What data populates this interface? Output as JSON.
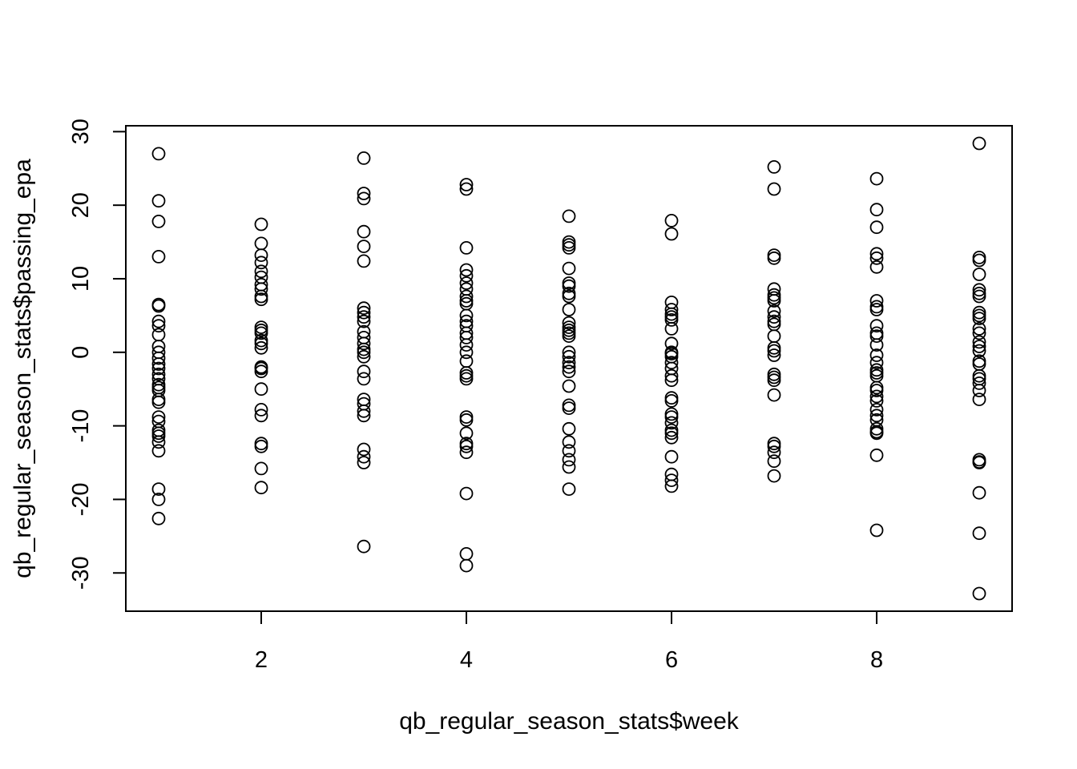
{
  "chart_data": {
    "type": "scatter",
    "xlabel": "qb_regular_season_stats$week",
    "ylabel": "qb_regular_season_stats$passing_epa",
    "xlim": [
      0.68,
      9.32
    ],
    "ylim": [
      -35.2,
      30.8
    ],
    "xticks": [
      2,
      4,
      6,
      8
    ],
    "yticks": [
      -30,
      -20,
      -10,
      0,
      10,
      20,
      30
    ],
    "grid": false,
    "marker": "open-circle",
    "color": "#000000",
    "series": [
      {
        "points": [
          [
            1,
            27.0
          ],
          [
            1,
            20.6
          ],
          [
            1,
            17.8
          ],
          [
            1,
            13.0
          ],
          [
            1,
            6.5
          ],
          [
            1,
            6.3
          ],
          [
            1,
            4.2
          ],
          [
            1,
            3.6
          ],
          [
            1,
            2.4
          ],
          [
            1,
            0.8
          ],
          [
            1,
            0.0
          ],
          [
            1,
            -0.8
          ],
          [
            1,
            -1.6
          ],
          [
            1,
            -2.2
          ],
          [
            1,
            -3.0
          ],
          [
            1,
            -3.6
          ],
          [
            1,
            -4.4
          ],
          [
            1,
            -4.8
          ],
          [
            1,
            -5.2
          ],
          [
            1,
            -6.4
          ],
          [
            1,
            -6.8
          ],
          [
            1,
            -8.8
          ],
          [
            1,
            -9.4
          ],
          [
            1,
            -10.6
          ],
          [
            1,
            -11.0
          ],
          [
            1,
            -11.4
          ],
          [
            1,
            -12.2
          ],
          [
            1,
            -13.4
          ],
          [
            1,
            -18.6
          ],
          [
            1,
            -20.0
          ],
          [
            1,
            -22.6
          ],
          [
            2,
            17.4
          ],
          [
            2,
            14.8
          ],
          [
            2,
            13.2
          ],
          [
            2,
            12.2
          ],
          [
            2,
            11.0
          ],
          [
            2,
            10.2
          ],
          [
            2,
            9.2
          ],
          [
            2,
            8.6
          ],
          [
            2,
            7.6
          ],
          [
            2,
            7.2
          ],
          [
            2,
            3.4
          ],
          [
            2,
            3.0
          ],
          [
            2,
            2.6
          ],
          [
            2,
            1.6
          ],
          [
            2,
            1.2
          ],
          [
            2,
            0.6
          ],
          [
            2,
            -2.0
          ],
          [
            2,
            -2.2
          ],
          [
            2,
            -2.6
          ],
          [
            2,
            -5.0
          ],
          [
            2,
            -7.8
          ],
          [
            2,
            -8.6
          ],
          [
            2,
            -12.4
          ],
          [
            2,
            -12.8
          ],
          [
            2,
            -15.8
          ],
          [
            2,
            -18.4
          ],
          [
            3,
            26.4
          ],
          [
            3,
            21.6
          ],
          [
            3,
            20.9
          ],
          [
            3,
            16.4
          ],
          [
            3,
            14.4
          ],
          [
            3,
            12.4
          ],
          [
            3,
            6.0
          ],
          [
            3,
            5.4
          ],
          [
            3,
            4.8
          ],
          [
            3,
            4.2
          ],
          [
            3,
            2.8
          ],
          [
            3,
            2.0
          ],
          [
            3,
            1.2
          ],
          [
            3,
            0.4
          ],
          [
            3,
            0.0
          ],
          [
            3,
            -0.6
          ],
          [
            3,
            -2.6
          ],
          [
            3,
            -3.6
          ],
          [
            3,
            -6.4
          ],
          [
            3,
            -7.0
          ],
          [
            3,
            -8.0
          ],
          [
            3,
            -8.6
          ],
          [
            3,
            -13.2
          ],
          [
            3,
            -14.2
          ],
          [
            3,
            -15.0
          ],
          [
            3,
            -26.4
          ],
          [
            4,
            22.8
          ],
          [
            4,
            22.2
          ],
          [
            4,
            14.2
          ],
          [
            4,
            11.2
          ],
          [
            4,
            10.4
          ],
          [
            4,
            9.4
          ],
          [
            4,
            8.6
          ],
          [
            4,
            7.6
          ],
          [
            4,
            7.0
          ],
          [
            4,
            6.6
          ],
          [
            4,
            5.0
          ],
          [
            4,
            4.2
          ],
          [
            4,
            3.6
          ],
          [
            4,
            2.6
          ],
          [
            4,
            2.0
          ],
          [
            4,
            1.0
          ],
          [
            4,
            0.0
          ],
          [
            4,
            -1.2
          ],
          [
            4,
            -2.8
          ],
          [
            4,
            -3.2
          ],
          [
            4,
            -3.6
          ],
          [
            4,
            -8.8
          ],
          [
            4,
            -9.2
          ],
          [
            4,
            -11.0
          ],
          [
            4,
            -12.4
          ],
          [
            4,
            -12.8
          ],
          [
            4,
            -13.6
          ],
          [
            4,
            -19.2
          ],
          [
            4,
            -27.4
          ],
          [
            4,
            -29.0
          ],
          [
            5,
            18.5
          ],
          [
            5,
            15.0
          ],
          [
            5,
            14.6
          ],
          [
            5,
            14.2
          ],
          [
            5,
            11.4
          ],
          [
            5,
            9.4
          ],
          [
            5,
            9.0
          ],
          [
            5,
            8.0
          ],
          [
            5,
            7.6
          ],
          [
            5,
            5.8
          ],
          [
            5,
            4.0
          ],
          [
            5,
            3.4
          ],
          [
            5,
            3.0
          ],
          [
            5,
            2.6
          ],
          [
            5,
            2.2
          ],
          [
            5,
            0.0
          ],
          [
            5,
            -0.6
          ],
          [
            5,
            -1.4
          ],
          [
            5,
            -2.0
          ],
          [
            5,
            -2.6
          ],
          [
            5,
            -4.6
          ],
          [
            5,
            -7.2
          ],
          [
            5,
            -7.6
          ],
          [
            5,
            -10.4
          ],
          [
            5,
            -12.2
          ],
          [
            5,
            -13.4
          ],
          [
            5,
            -14.6
          ],
          [
            5,
            -15.6
          ],
          [
            5,
            -18.6
          ],
          [
            6,
            17.9
          ],
          [
            6,
            16.1
          ],
          [
            6,
            6.8
          ],
          [
            6,
            5.8
          ],
          [
            6,
            5.2
          ],
          [
            6,
            4.8
          ],
          [
            6,
            4.4
          ],
          [
            6,
            3.2
          ],
          [
            6,
            1.2
          ],
          [
            6,
            0.0
          ],
          [
            6,
            -0.2
          ],
          [
            6,
            -0.6
          ],
          [
            6,
            -1.4
          ],
          [
            6,
            -2.2
          ],
          [
            6,
            -3.2
          ],
          [
            6,
            -3.8
          ],
          [
            6,
            -6.2
          ],
          [
            6,
            -6.6
          ],
          [
            6,
            -8.4
          ],
          [
            6,
            -8.8
          ],
          [
            6,
            -9.6
          ],
          [
            6,
            -10.6
          ],
          [
            6,
            -11.0
          ],
          [
            6,
            -11.6
          ],
          [
            6,
            -14.2
          ],
          [
            6,
            -16.6
          ],
          [
            6,
            -17.4
          ],
          [
            6,
            -18.2
          ],
          [
            7,
            25.2
          ],
          [
            7,
            22.2
          ],
          [
            7,
            13.2
          ],
          [
            7,
            12.8
          ],
          [
            7,
            8.6
          ],
          [
            7,
            7.8
          ],
          [
            7,
            7.4
          ],
          [
            7,
            7.0
          ],
          [
            7,
            5.6
          ],
          [
            7,
            4.8
          ],
          [
            7,
            4.2
          ],
          [
            7,
            3.8
          ],
          [
            7,
            2.2
          ],
          [
            7,
            0.6
          ],
          [
            7,
            0.2
          ],
          [
            7,
            -0.4
          ],
          [
            7,
            -3.0
          ],
          [
            7,
            -3.4
          ],
          [
            7,
            -3.8
          ],
          [
            7,
            -5.8
          ],
          [
            7,
            -12.4
          ],
          [
            7,
            -12.8
          ],
          [
            7,
            -13.6
          ],
          [
            7,
            -14.8
          ],
          [
            7,
            -16.8
          ],
          [
            8,
            23.6
          ],
          [
            8,
            19.4
          ],
          [
            8,
            17.0
          ],
          [
            8,
            13.4
          ],
          [
            8,
            12.8
          ],
          [
            8,
            11.6
          ],
          [
            8,
            7.0
          ],
          [
            8,
            6.2
          ],
          [
            8,
            5.8
          ],
          [
            8,
            3.6
          ],
          [
            8,
            2.6
          ],
          [
            8,
            2.2
          ],
          [
            8,
            1.0
          ],
          [
            8,
            -0.4
          ],
          [
            8,
            -1.4
          ],
          [
            8,
            -2.4
          ],
          [
            8,
            -2.8
          ],
          [
            8,
            -3.2
          ],
          [
            8,
            -4.8
          ],
          [
            8,
            -5.2
          ],
          [
            8,
            -6.0
          ],
          [
            8,
            -6.6
          ],
          [
            8,
            -7.8
          ],
          [
            8,
            -8.6
          ],
          [
            8,
            -9.2
          ],
          [
            8,
            -10.4
          ],
          [
            8,
            -10.8
          ],
          [
            8,
            -11.0
          ],
          [
            8,
            -14.0
          ],
          [
            8,
            -24.2
          ],
          [
            9,
            28.4
          ],
          [
            9,
            12.9
          ],
          [
            9,
            12.5
          ],
          [
            9,
            10.6
          ],
          [
            9,
            8.5
          ],
          [
            9,
            8.0
          ],
          [
            9,
            7.6
          ],
          [
            9,
            5.4
          ],
          [
            9,
            5.0
          ],
          [
            9,
            4.6
          ],
          [
            9,
            3.2
          ],
          [
            9,
            2.6
          ],
          [
            9,
            1.4
          ],
          [
            9,
            0.8
          ],
          [
            9,
            0.2
          ],
          [
            9,
            -1.2
          ],
          [
            9,
            -1.6
          ],
          [
            9,
            -3.2
          ],
          [
            9,
            -3.6
          ],
          [
            9,
            -4.2
          ],
          [
            9,
            -5.2
          ],
          [
            9,
            -6.4
          ],
          [
            9,
            -14.6
          ],
          [
            9,
            -14.9
          ],
          [
            9,
            -15.0
          ],
          [
            9,
            -19.1
          ],
          [
            9,
            -24.6
          ],
          [
            9,
            -32.8
          ]
        ]
      }
    ]
  }
}
